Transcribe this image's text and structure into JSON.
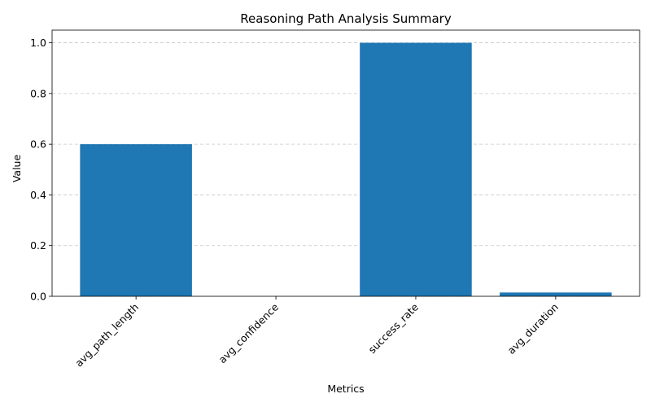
{
  "chart_data": {
    "type": "bar",
    "title": "Reasoning Path Analysis Summary",
    "xlabel": "Metrics",
    "ylabel": "Value",
    "categories": [
      "avg_path_length",
      "avg_confidence",
      "success_rate",
      "avg_duration"
    ],
    "values": [
      0.6,
      0.0,
      1.0,
      0.015
    ],
    "ylim": [
      0,
      1.05
    ],
    "yticks": [
      "0.0",
      "0.2",
      "0.4",
      "0.6",
      "0.8",
      "1.0"
    ],
    "grid": "y dashed",
    "bar_color": "#1f77b4",
    "grid_color": "#c8c8c8"
  }
}
